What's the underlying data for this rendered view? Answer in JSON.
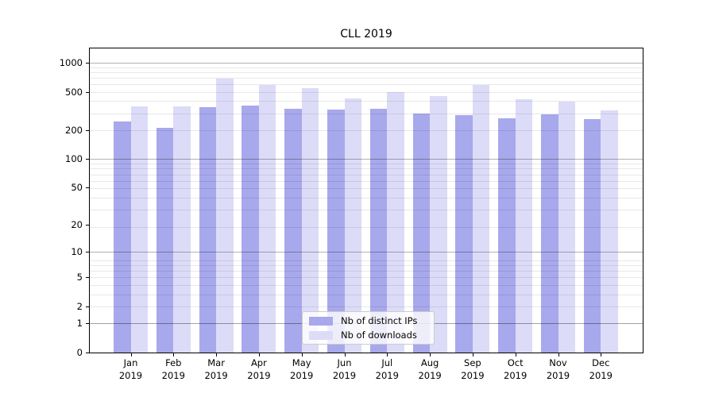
{
  "title": "CLL 2019",
  "chart_data": {
    "type": "bar",
    "title": "CLL 2019",
    "categories": [
      "Jan",
      "Feb",
      "Mar",
      "Apr",
      "May",
      "Jun",
      "Jul",
      "Aug",
      "Sep",
      "Oct",
      "Nov",
      "Dec"
    ],
    "year": "2019",
    "series": [
      {
        "name": "Nb of distinct IPs",
        "color": "#a8a8ec",
        "values": [
          245,
          211,
          347,
          357,
          330,
          325,
          330,
          296,
          287,
          265,
          294,
          259
        ]
      },
      {
        "name": "Nb of downloads",
        "color": "#dcdcf8",
        "values": [
          353,
          350,
          682,
          587,
          549,
          425,
          500,
          452,
          592,
          420,
          393,
          318
        ]
      }
    ],
    "xlabel": "",
    "ylabel": "",
    "yscale": "log1p",
    "yticks": [
      0,
      1,
      2,
      5,
      10,
      20,
      50,
      100,
      200,
      500,
      1000
    ],
    "ylim": [
      0,
      1400
    ],
    "grid": true,
    "grid_major_color": "#b3b3b3",
    "grid_minor_color": "#e9e9e9",
    "legend_position": "lower center"
  }
}
